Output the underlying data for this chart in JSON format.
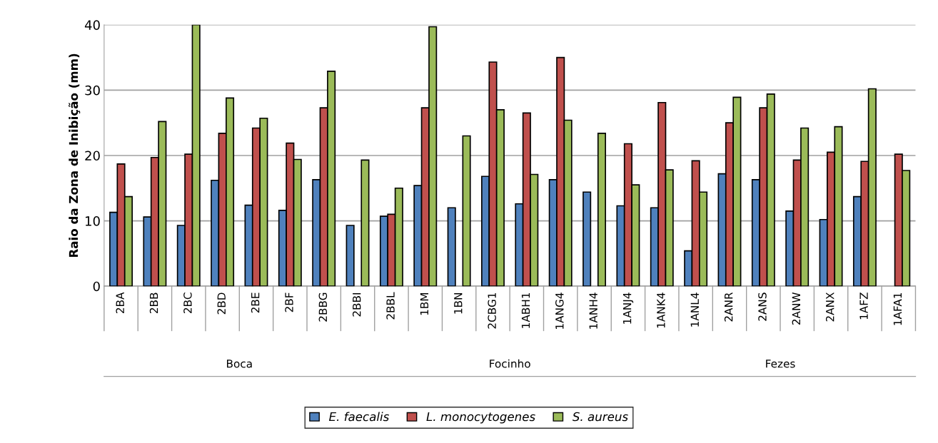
{
  "chart_data": {
    "type": "bar",
    "ylabel": "Raio da Zona de Inibição (mm)",
    "categories": [
      "2BA",
      "2BB",
      "2BC",
      "2BD",
      "2BE",
      "2BF",
      "2BBG",
      "2BBI",
      "2BBL",
      "1BM",
      "1BN",
      "2CBG1",
      "1ABH1",
      "1ANG4",
      "1ANH4",
      "1ANJ4",
      "1ANK4",
      "1ANL4",
      "2ANR",
      "2ANS",
      "2ANW",
      "2ANX",
      "1AFZ",
      "1AFA1"
    ],
    "series": [
      {
        "name": "E. faecalis",
        "color": "#4f81bd",
        "values": [
          11.3,
          10.6,
          9.3,
          16.2,
          12.4,
          11.6,
          16.3,
          9.3,
          10.7,
          15.4,
          12.0,
          16.8,
          12.6,
          16.3,
          14.4,
          12.3,
          12.0,
          5.4,
          17.2,
          16.3,
          11.5,
          10.2,
          13.7,
          null
        ]
      },
      {
        "name": "L. monocytogenes",
        "color": "#c0504d",
        "values": [
          18.7,
          19.7,
          20.2,
          23.4,
          24.2,
          21.9,
          27.3,
          null,
          11.0,
          27.3,
          null,
          34.3,
          26.5,
          35.0,
          null,
          21.8,
          28.1,
          19.2,
          25.0,
          27.3,
          19.3,
          20.5,
          19.1,
          20.2
        ]
      },
      {
        "name": "S. aureus",
        "color": "#9bbb59",
        "values": [
          13.7,
          25.2,
          40,
          28.8,
          25.7,
          19.4,
          32.9,
          19.3,
          15.0,
          39.7,
          23.0,
          27.0,
          17.1,
          25.4,
          23.4,
          15.5,
          17.8,
          14.4,
          28.9,
          29.4,
          24.2,
          24.4,
          30.2,
          17.7
        ]
      }
    ],
    "annotations": [
      "Boca",
      "Focinho",
      "Fezes"
    ],
    "ylim": [
      0,
      40
    ],
    "yticks": [
      0,
      10,
      20,
      30,
      40
    ],
    "grid": "y",
    "legend": "bottom"
  }
}
